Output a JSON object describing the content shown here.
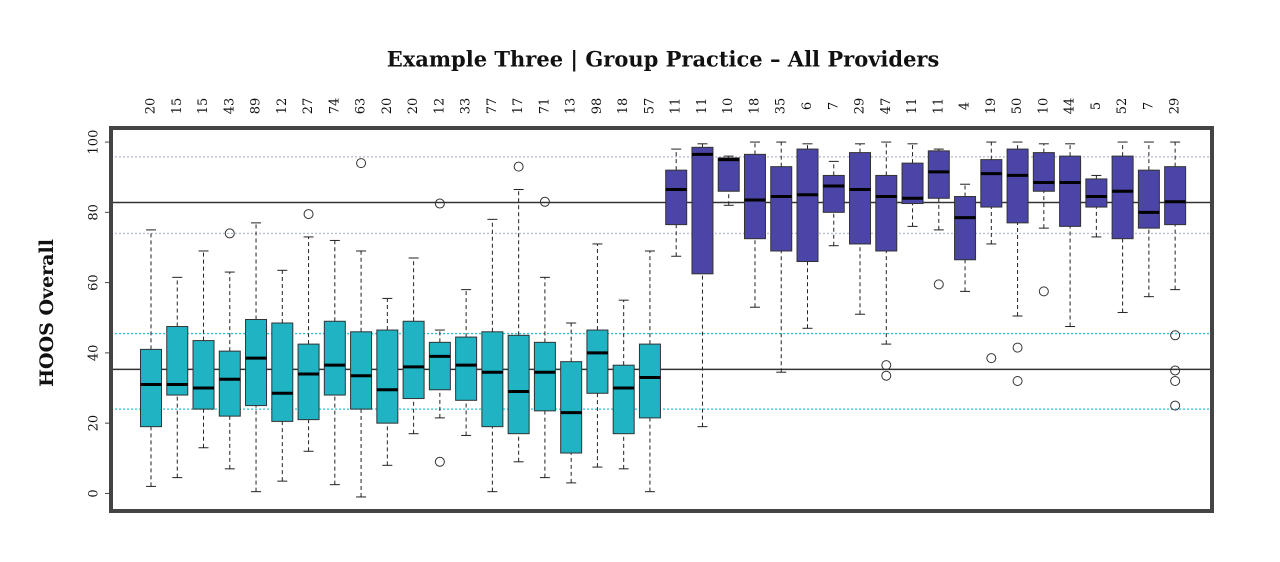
{
  "chart_data": {
    "type": "box",
    "title": "Example Three | Group Practice – All Providers",
    "y_label": "HOOS Overall",
    "categories": [
      "20",
      "15",
      "15",
      "43",
      "89",
      "12",
      "27",
      "74",
      "63",
      "20",
      "20",
      "12",
      "33",
      "77",
      "17",
      "71",
      "13",
      "98",
      "18",
      "57",
      "11",
      "11",
      "10",
      "18",
      "35",
      "6",
      "7",
      "29",
      "47",
      "11",
      "11",
      "4",
      "19",
      "50",
      "10",
      "44",
      "5",
      "52",
      "7",
      "29"
    ],
    "ylim": [
      -5,
      104
    ],
    "yticks": [
      0,
      20,
      40,
      60,
      80,
      100
    ],
    "hlines": [
      {
        "value": 82.8,
        "color": "#333333",
        "style": "solid"
      },
      {
        "value": 35.3,
        "color": "#333333",
        "style": "solid"
      },
      {
        "value": 45.5,
        "color": "#22c8d8",
        "style": "dotted"
      },
      {
        "value": 24,
        "color": "#22c8d8",
        "style": "dotted"
      },
      {
        "value": 95.8,
        "color": "#b8bfd8",
        "style": "dotted"
      },
      {
        "value": 74,
        "color": "#b8bfd8",
        "style": "dotted"
      }
    ],
    "series": [
      {
        "color": "#1fb3c4",
        "boxes": [
          {
            "low": 2,
            "q1": 19,
            "median": 31,
            "q3": 41,
            "high": 75
          },
          {
            "low": 4.5,
            "q1": 28,
            "median": 31,
            "q3": 47.5,
            "high": 61.5
          },
          {
            "low": 13,
            "q1": 24,
            "median": 30,
            "q3": 43.5,
            "high": 69
          },
          {
            "low": 7,
            "q1": 22,
            "median": 32.5,
            "q3": 40.5,
            "high": 63,
            "outliers": [
              74
            ]
          },
          {
            "low": 0.5,
            "q1": 25,
            "median": 38.5,
            "q3": 49.5,
            "high": 77
          },
          {
            "low": 3.5,
            "q1": 20.5,
            "median": 28.5,
            "q3": 48.5,
            "high": 63.5
          },
          {
            "low": 12,
            "q1": 21,
            "median": 34,
            "q3": 42.5,
            "high": 73,
            "outliers": [
              79.5
            ]
          },
          {
            "low": 2.5,
            "q1": 28,
            "median": 36.5,
            "q3": 49,
            "high": 72
          },
          {
            "low": -1,
            "q1": 24,
            "median": 33.5,
            "q3": 46,
            "high": 69,
            "outliers": [
              94
            ]
          },
          {
            "low": 8,
            "q1": 20,
            "median": 29.5,
            "q3": 46.5,
            "high": 55.5
          },
          {
            "low": 17,
            "q1": 27,
            "median": 36,
            "q3": 49,
            "high": 67
          },
          {
            "low": 21.5,
            "q1": 29.5,
            "median": 39,
            "q3": 43,
            "high": 46.5,
            "outliers": [
              82.5,
              9
            ]
          },
          {
            "low": 16.5,
            "q1": 26.5,
            "median": 36.5,
            "q3": 44.5,
            "high": 58
          },
          {
            "low": 0.5,
            "q1": 19,
            "median": 34.5,
            "q3": 46,
            "high": 78
          },
          {
            "low": 9,
            "q1": 17,
            "median": 29,
            "q3": 45,
            "high": 86.5,
            "outliers": [
              93
            ]
          },
          {
            "low": 4.5,
            "q1": 23.5,
            "median": 34.5,
            "q3": 43,
            "high": 61.5,
            "outliers": [
              83
            ]
          },
          {
            "low": 3,
            "q1": 11.5,
            "median": 23,
            "q3": 37.5,
            "high": 48.5
          },
          {
            "low": 7.5,
            "q1": 28.5,
            "median": 40,
            "q3": 46.5,
            "high": 71
          },
          {
            "low": 7,
            "q1": 17,
            "median": 30,
            "q3": 36.5,
            "high": 55
          },
          {
            "low": 0.5,
            "q1": 21.5,
            "median": 33,
            "q3": 42.5,
            "high": 69
          }
        ]
      },
      {
        "color": "#4a45a6",
        "boxes": [
          {
            "low": 67.5,
            "q1": 76.5,
            "median": 86.5,
            "q3": 92,
            "high": 98
          },
          {
            "low": 19,
            "q1": 62.5,
            "median": 96.5,
            "q3": 98.5,
            "high": 99.5
          },
          {
            "low": 82,
            "q1": 86,
            "median": 95,
            "q3": 95.5,
            "high": 96
          },
          {
            "low": 53,
            "q1": 72.5,
            "median": 83.5,
            "q3": 96.5,
            "high": 100
          },
          {
            "low": 34.5,
            "q1": 69,
            "median": 84.5,
            "q3": 93,
            "high": 100
          },
          {
            "low": 47,
            "q1": 66,
            "median": 85,
            "q3": 98,
            "high": 99.5
          },
          {
            "low": 70.5,
            "q1": 80,
            "median": 87.5,
            "q3": 90.5,
            "high": 94.5
          },
          {
            "low": 51,
            "q1": 71,
            "median": 86.5,
            "q3": 97,
            "high": 99.5
          },
          {
            "low": 42.5,
            "q1": 69,
            "median": 84.5,
            "q3": 90.5,
            "high": 100,
            "outliers": [
              36.5,
              33.5
            ]
          },
          {
            "low": 76,
            "q1": 82.5,
            "median": 84,
            "q3": 94,
            "high": 99.5
          },
          {
            "low": 75,
            "q1": 84,
            "median": 91.5,
            "q3": 97.5,
            "high": 98,
            "outliers": [
              59.5
            ]
          },
          {
            "low": 57.5,
            "q1": 66.5,
            "median": 78.5,
            "q3": 84.5,
            "high": 88
          },
          {
            "low": 71,
            "q1": 81.5,
            "median": 91,
            "q3": 95,
            "high": 100,
            "outliers": [
              38.5
            ]
          },
          {
            "low": 50.5,
            "q1": 77,
            "median": 90.5,
            "q3": 98,
            "high": 100,
            "outliers": [
              41.5,
              32
            ]
          },
          {
            "low": 75.5,
            "q1": 86,
            "median": 88.5,
            "q3": 97,
            "high": 99.5,
            "outliers": [
              57.5
            ]
          },
          {
            "low": 47.5,
            "q1": 76,
            "median": 88.5,
            "q3": 96,
            "high": 99.5
          },
          {
            "low": 73,
            "q1": 81.5,
            "median": 84.5,
            "q3": 89.5,
            "high": 90.5
          },
          {
            "low": 51.5,
            "q1": 72.5,
            "median": 86,
            "q3": 96,
            "high": 100
          },
          {
            "low": 56,
            "q1": 75.5,
            "median": 80,
            "q3": 92,
            "high": 100
          },
          {
            "low": 58,
            "q1": 76.5,
            "median": 83,
            "q3": 93,
            "high": 100,
            "outliers": [
              45,
              35,
              32,
              25
            ]
          }
        ]
      }
    ]
  }
}
